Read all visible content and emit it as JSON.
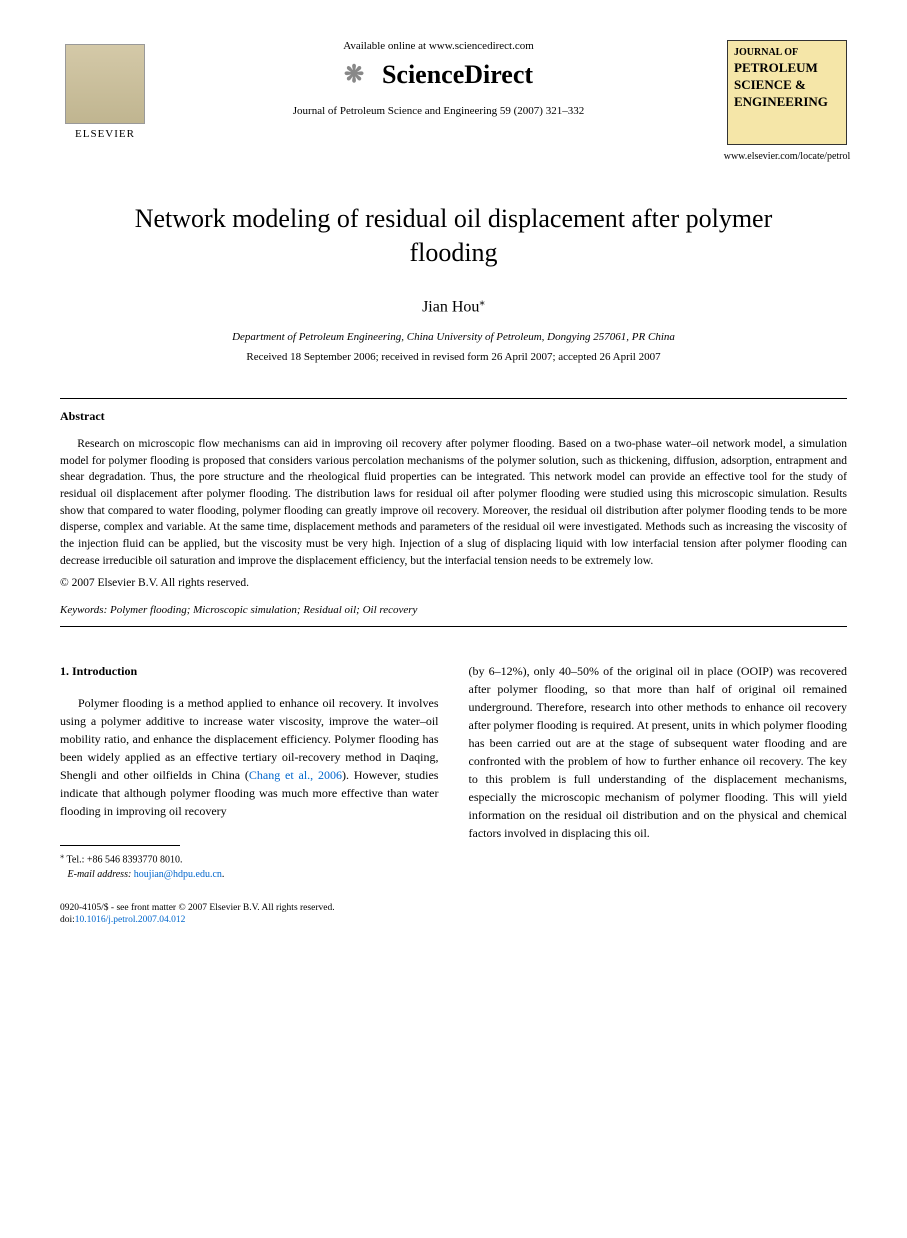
{
  "header": {
    "elsevier_label": "ELSEVIER",
    "available_online": "Available online at www.sciencedirect.com",
    "sciencedirect_brand": "ScienceDirect",
    "journal_citation": "Journal of Petroleum Science and Engineering 59 (2007) 321–332",
    "cover_journal_of": "JOURNAL OF",
    "cover_main_line1": "PETROLEUM",
    "cover_main_line2": "SCIENCE &",
    "cover_main_line3": "ENGINEERING",
    "cover_url": "www.elsevier.com/locate/petrol"
  },
  "article": {
    "title": "Network modeling of residual oil displacement after polymer flooding",
    "author": "Jian Hou",
    "author_marker": "⁎",
    "affiliation": "Department of Petroleum Engineering, China University of Petroleum, Dongying 257061, PR China",
    "dates": "Received 18 September 2006; received in revised form 26 April 2007; accepted 26 April 2007"
  },
  "abstract": {
    "heading": "Abstract",
    "text": "Research on microscopic flow mechanisms can aid in improving oil recovery after polymer flooding. Based on a two-phase water–oil network model, a simulation model for polymer flooding is proposed that considers various percolation mechanisms of the polymer solution, such as thickening, diffusion, adsorption, entrapment and shear degradation. Thus, the pore structure and the rheological fluid properties can be integrated. This network model can provide an effective tool for the study of residual oil displacement after polymer flooding. The distribution laws for residual oil after polymer flooding were studied using this microscopic simulation. Results show that compared to water flooding, polymer flooding can greatly improve oil recovery. Moreover, the residual oil distribution after polymer flooding tends to be more disperse, complex and variable. At the same time, displacement methods and parameters of the residual oil were investigated. Methods such as increasing the viscosity of the injection fluid can be applied, but the viscosity must be very high. Injection of a slug of displacing liquid with low interfacial tension after polymer flooding can decrease irreducible oil saturation and improve the displacement efficiency, but the interfacial tension needs to be extremely low.",
    "copyright": "© 2007 Elsevier B.V. All rights reserved.",
    "keywords_label": "Keywords:",
    "keywords": " Polymer flooding; Microscopic simulation; Residual oil; Oil recovery"
  },
  "body": {
    "section_heading": "1. Introduction",
    "col1_para": "Polymer flooding is a method applied to enhance oil recovery. It involves using a polymer additive to increase water viscosity, improve the water–oil mobility ratio, and enhance the displacement efficiency. Polymer flooding has been widely applied as an effective tertiary oil-recovery method in Daqing, Shengli and other oilfields in China (",
    "citation": "Chang et al., 2006",
    "col1_para_cont": "). However, studies indicate that although polymer flooding was much more effective than water flooding in improving oil recovery",
    "col2_para": "(by 6–12%), only 40–50% of the original oil in place (OOIP) was recovered after polymer flooding, so that more than half of original oil remained underground. Therefore, research into other methods to enhance oil recovery after polymer flooding is required. At present, units in which polymer flooding has been carried out are at the stage of subsequent water flooding and are confronted with the problem of how to further enhance oil recovery. The key to this problem is full understanding of the displacement mechanisms, especially the microscopic mechanism of polymer flooding. This will yield information on the residual oil distribution and on the physical and chemical factors involved in displacing this oil."
  },
  "footnote": {
    "marker": "⁎",
    "tel": " Tel.: +86 546 8393770 8010.",
    "email_label": "E-mail address:",
    "email": " houjian@hdpu.edu.cn",
    "email_suffix": "."
  },
  "footer": {
    "line1": "0920-4105/$ - see front matter © 2007 Elsevier B.V. All rights reserved.",
    "doi_label": "doi:",
    "doi": "10.1016/j.petrol.2007.04.012"
  },
  "colors": {
    "link": "#0066cc",
    "cover_bg": "#f5e6a8",
    "elsevier_bg_top": "#d4c9a8",
    "elsevier_bg_bottom": "#c0b590"
  }
}
